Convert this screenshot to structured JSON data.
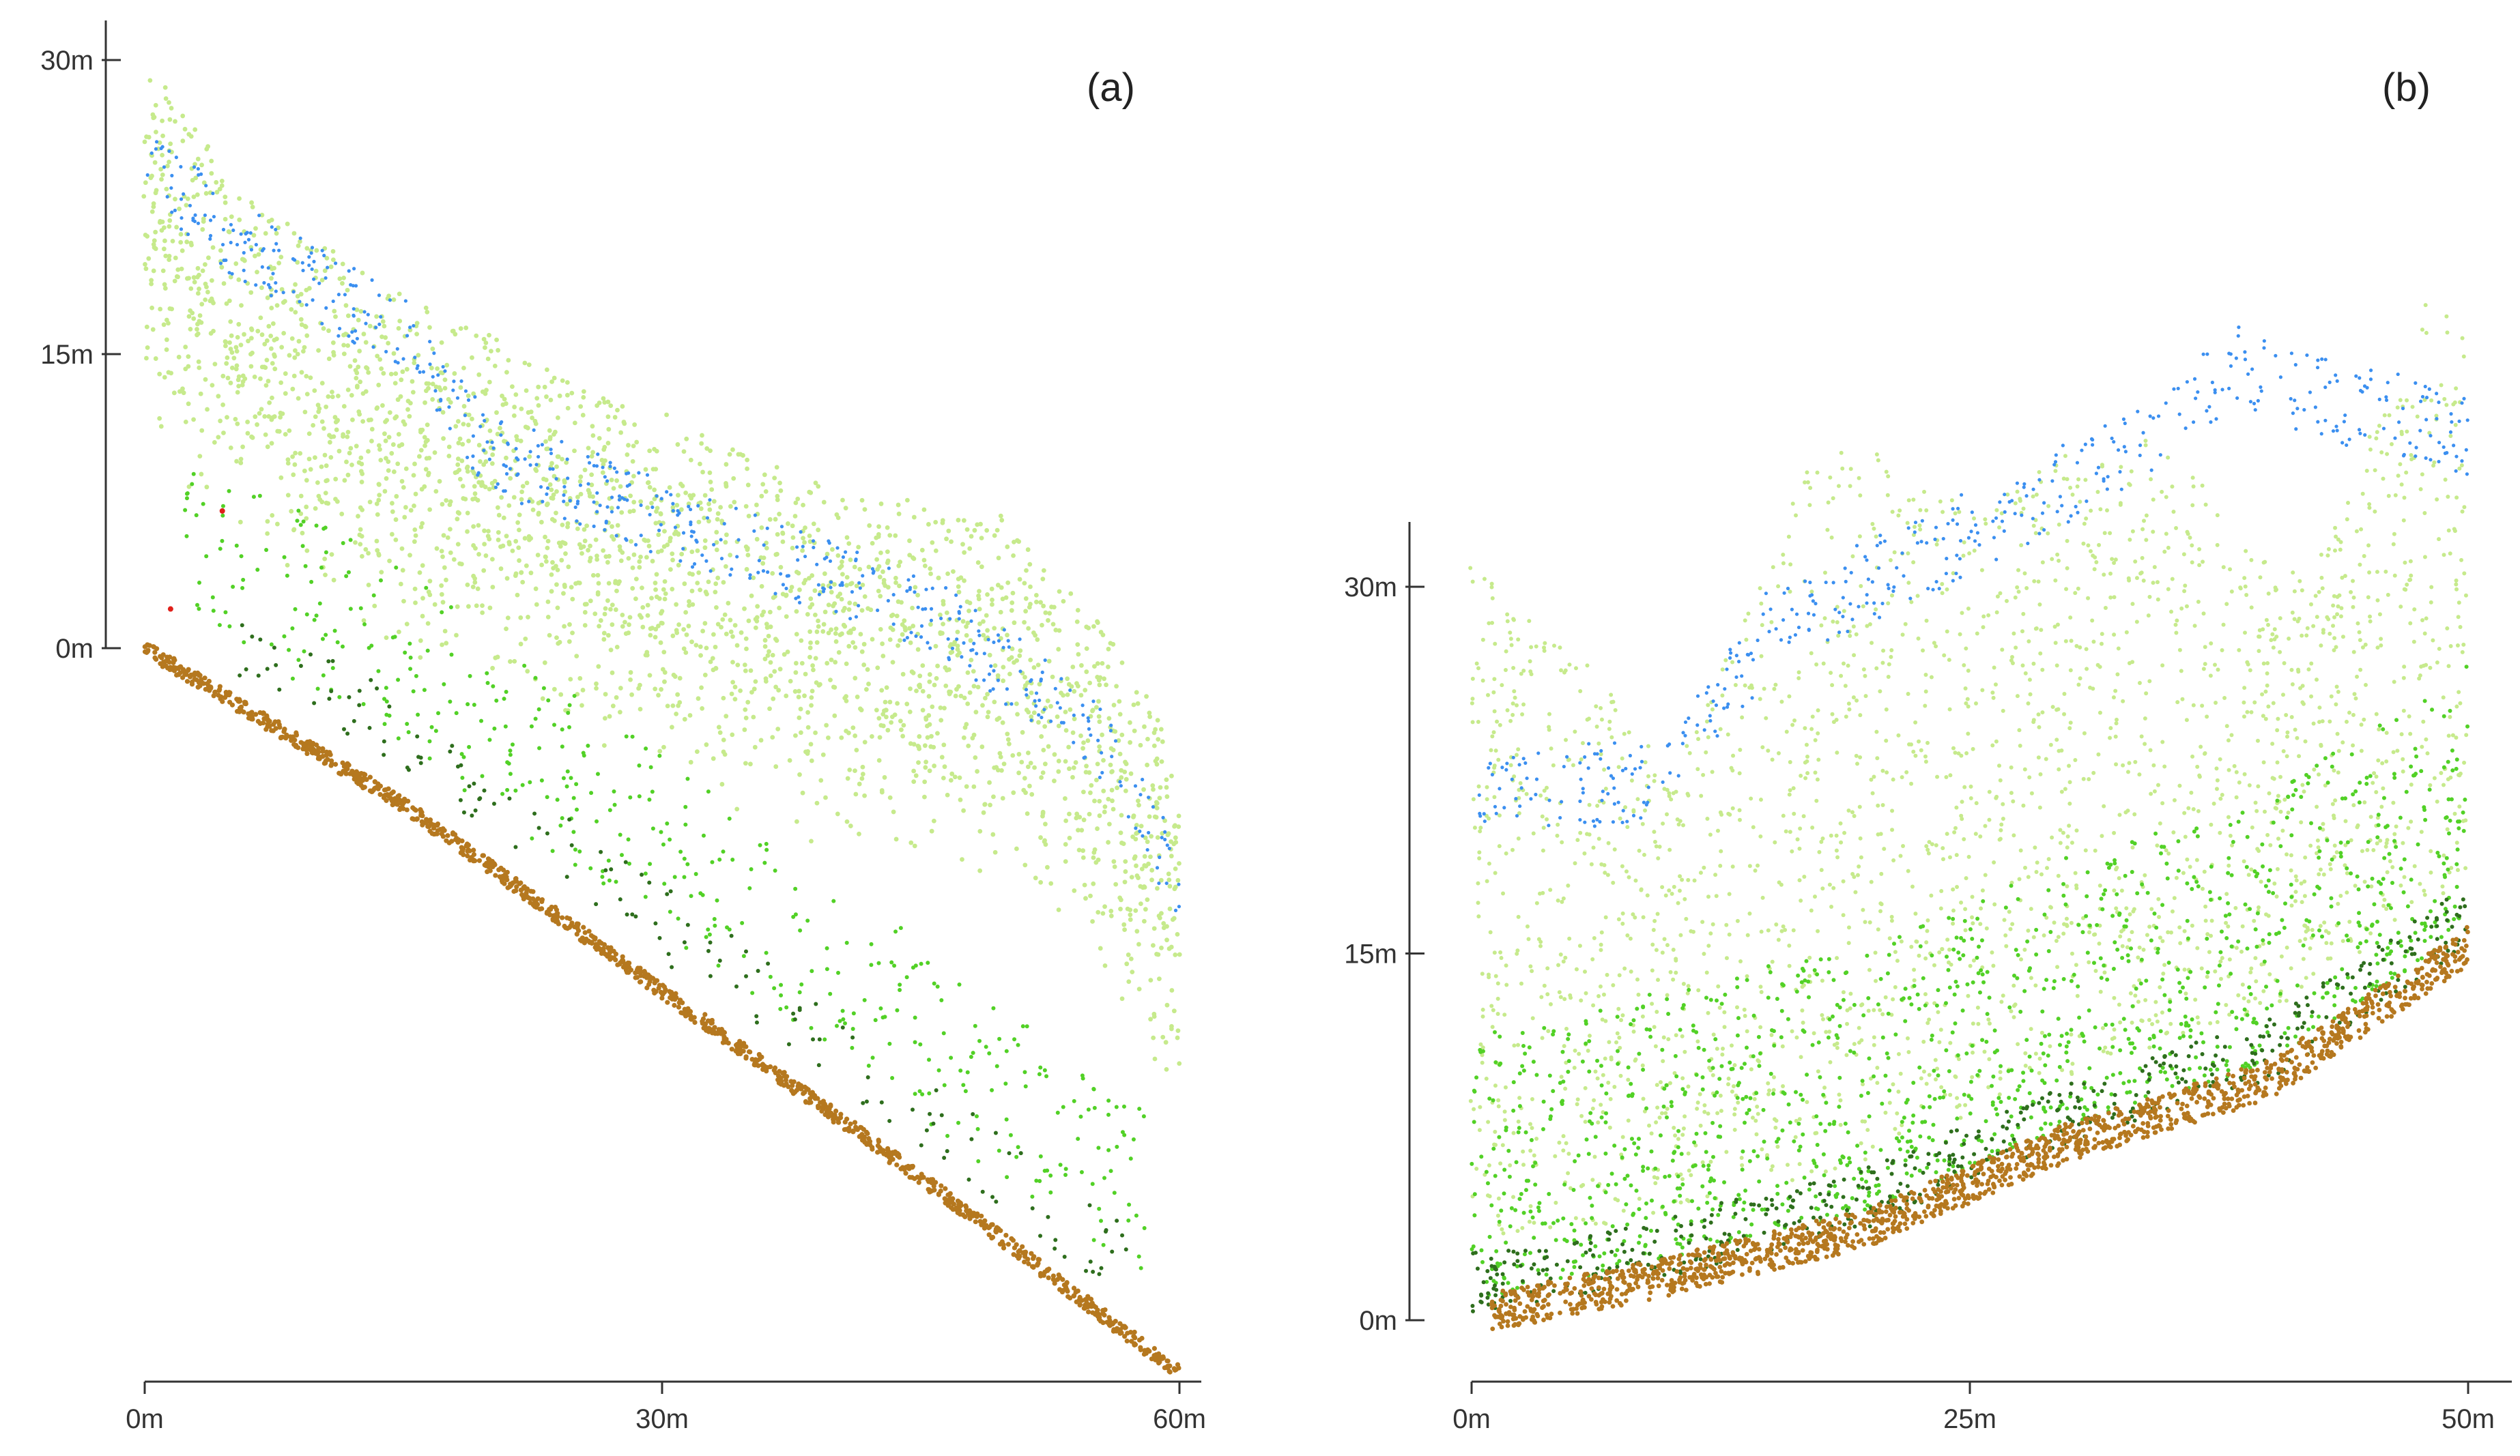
{
  "figure": {
    "panels": [
      {
        "id": "a",
        "label": "(a)",
        "x_ticks": [
          "0m",
          "30m",
          "60m"
        ],
        "y_ticks": [
          "0m",
          "15m",
          "30m"
        ]
      },
      {
        "id": "b",
        "label": "(b)",
        "x_ticks": [
          "0m",
          "25m",
          "50m"
        ],
        "y_ticks": [
          "0m",
          "15m",
          "30m"
        ]
      }
    ],
    "colors": {
      "ground": "#b5781f",
      "canopy_light": "#c6ea8c",
      "canopy_top_blue": "#3b8ff0",
      "mid_green": "#52d126",
      "dark_green": "#2e6e1d",
      "red_points": "#e0201a",
      "axis": "#333333"
    }
  },
  "chart_data": [
    {
      "type": "scatter",
      "title": "(a)",
      "xlabel": "",
      "ylabel": "",
      "xlim": [
        0,
        60
      ],
      "ylim": [
        0,
        30
      ],
      "x_ticks": [
        0,
        30,
        60
      ],
      "y_ticks": [
        0,
        15,
        30
      ],
      "grid": false,
      "series": [
        {
          "color": "#b5781f",
          "description_points": [
            [
              0,
              0
            ],
            [
              15,
              -8
            ],
            [
              30,
              -17.5
            ],
            [
              45,
              -27
            ],
            [
              60,
              -37
            ]
          ]
        },
        {
          "color": "#c6ea8c",
          "top_profile": [
            [
              1,
              29
            ],
            [
              5,
              24
            ],
            [
              15,
              18
            ],
            [
              25,
              14
            ],
            [
              40,
              8
            ],
            [
              50,
              7
            ],
            [
              55,
              2
            ],
            [
              60,
              -5
            ]
          ]
        },
        {
          "color": "#3b8ff0",
          "top_profile": [
            [
              0,
              27
            ],
            [
              5,
              23
            ],
            [
              15,
              18
            ],
            [
              20,
              12
            ],
            [
              35,
              7
            ],
            [
              45,
              4
            ],
            [
              55,
              -2
            ],
            [
              60,
              -10
            ]
          ]
        },
        {
          "color": "#52d126"
        },
        {
          "color": "#2e6e1d"
        },
        {
          "color": "#e0201a"
        }
      ]
    },
    {
      "type": "scatter",
      "title": "(b)",
      "xlabel": "",
      "ylabel": "",
      "xlim": [
        0,
        50
      ],
      "ylim": [
        0,
        30
      ],
      "x_ticks": [
        0,
        25,
        50
      ],
      "y_ticks": [
        0,
        15,
        30
      ],
      "grid": false,
      "series": [
        {
          "color": "#b5781f",
          "description_points": [
            [
              1,
              0
            ],
            [
              10,
              1.5
            ],
            [
              20,
              3.5
            ],
            [
              30,
              7
            ],
            [
              40,
              9.5
            ],
            [
              50,
              15
            ]
          ]
        },
        {
          "color": "#c6ea8c",
          "top_profile": [
            [
              0,
              31
            ],
            [
              7,
              26
            ],
            [
              10,
              22
            ],
            [
              18,
              37
            ],
            [
              25,
              33
            ],
            [
              33,
              37
            ],
            [
              42,
              30
            ],
            [
              48,
              42
            ],
            [
              50,
              40
            ]
          ]
        },
        {
          "color": "#3b8ff0",
          "top_profile": [
            [
              0,
              23
            ],
            [
              10,
              24
            ],
            [
              15,
              30
            ],
            [
              25,
              34
            ],
            [
              35,
              38
            ],
            [
              38,
              41
            ],
            [
              40,
              40
            ],
            [
              50,
              38
            ]
          ]
        },
        {
          "color": "#52d126"
        },
        {
          "color": "#2e6e1d"
        }
      ]
    }
  ]
}
